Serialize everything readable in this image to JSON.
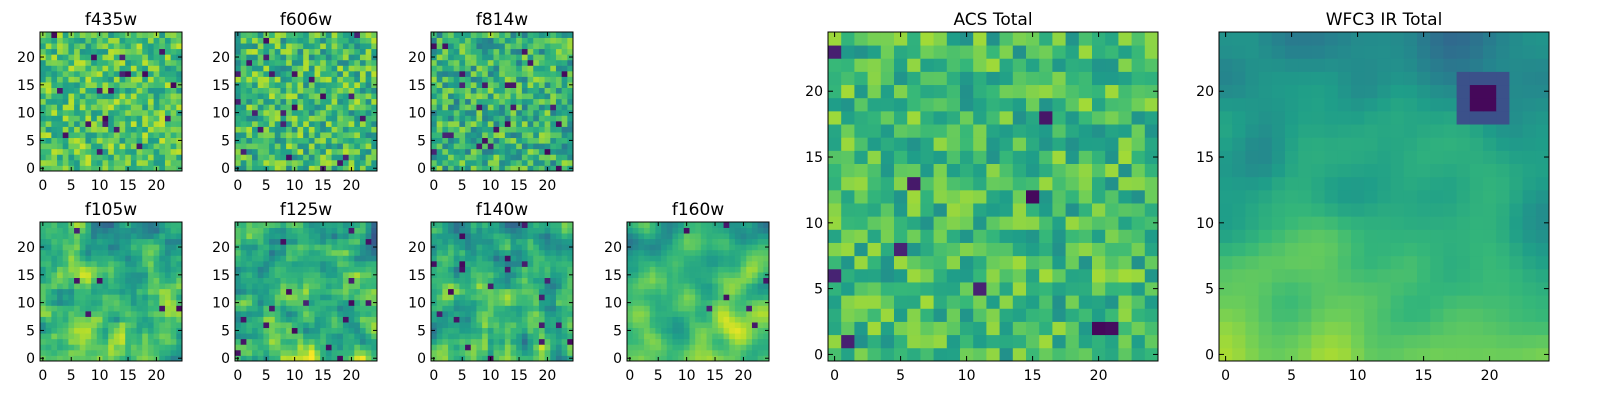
{
  "colormap": "viridis",
  "colors": {
    "viridis_stops": [
      "#440154",
      "#482878",
      "#3e4989",
      "#31688e",
      "#26828e",
      "#1f9e89",
      "#35b779",
      "#6ece58",
      "#b5de2b",
      "#fde725"
    ],
    "axis": "#000000",
    "background": "#ffffff"
  },
  "chart_data": [
    {
      "id": "f435w",
      "type": "heatmap",
      "title": "f435w",
      "nx": 25,
      "ny": 25,
      "xlim": [
        -0.5,
        24.5
      ],
      "ylim": [
        -0.5,
        24.5
      ],
      "xticks": [
        0,
        5,
        10,
        15,
        20
      ],
      "xtick_labels": [
        "0",
        "5",
        "10",
        "15",
        "20"
      ],
      "yticks": [
        0,
        5,
        10,
        15,
        20
      ],
      "ytick_labels": [
        "0",
        "5",
        "10",
        "15",
        "20"
      ],
      "value_range": [
        0,
        1
      ],
      "mean": 0.72,
      "noise": 0.2,
      "smooth": 0,
      "dark_spot_fraction": 0.025,
      "seed": 11
    },
    {
      "id": "f606w",
      "type": "heatmap",
      "title": "f606w",
      "nx": 25,
      "ny": 25,
      "xlim": [
        -0.5,
        24.5
      ],
      "ylim": [
        -0.5,
        24.5
      ],
      "xticks": [
        0,
        5,
        10,
        15,
        20
      ],
      "xtick_labels": [
        "0",
        "5",
        "10",
        "15",
        "20"
      ],
      "yticks": [
        0,
        5,
        10,
        15,
        20
      ],
      "ytick_labels": [
        "0",
        "5",
        "10",
        "15",
        "20"
      ],
      "value_range": [
        0,
        1
      ],
      "mean": 0.68,
      "noise": 0.22,
      "smooth": 0,
      "dark_spot_fraction": 0.035,
      "seed": 23
    },
    {
      "id": "f814w",
      "type": "heatmap",
      "title": "f814w",
      "nx": 25,
      "ny": 25,
      "xlim": [
        -0.5,
        24.5
      ],
      "ylim": [
        -0.5,
        24.5
      ],
      "xticks": [
        0,
        5,
        10,
        15,
        20
      ],
      "xtick_labels": [
        "0",
        "5",
        "10",
        "15",
        "20"
      ],
      "yticks": [
        0,
        5,
        10,
        15,
        20
      ],
      "ytick_labels": [
        "0",
        "5",
        "10",
        "15",
        "20"
      ],
      "value_range": [
        0,
        1
      ],
      "mean": 0.64,
      "noise": 0.22,
      "smooth": 0,
      "dark_spot_fraction": 0.03,
      "seed": 37
    },
    {
      "id": "f105w",
      "type": "heatmap",
      "title": "f105w",
      "nx": 25,
      "ny": 25,
      "xlim": [
        -0.5,
        24.5
      ],
      "ylim": [
        -0.5,
        24.5
      ],
      "xticks": [
        0,
        5,
        10,
        15,
        20
      ],
      "xtick_labels": [
        "0",
        "5",
        "10",
        "15",
        "20"
      ],
      "yticks": [
        0,
        5,
        10,
        15,
        20
      ],
      "ytick_labels": [
        "0",
        "5",
        "10",
        "15",
        "20"
      ],
      "value_range": [
        0,
        1
      ],
      "mean": 0.66,
      "noise": 0.24,
      "smooth": 1,
      "gradient": 0.16,
      "dark_spot_fraction": 0.02,
      "seed": 41
    },
    {
      "id": "f125w",
      "type": "heatmap",
      "title": "f125w",
      "nx": 25,
      "ny": 25,
      "xlim": [
        -0.5,
        24.5
      ],
      "ylim": [
        -0.5,
        24.5
      ],
      "xticks": [
        0,
        5,
        10,
        15,
        20
      ],
      "xtick_labels": [
        "0",
        "5",
        "10",
        "15",
        "20"
      ],
      "yticks": [
        0,
        5,
        10,
        15,
        20
      ],
      "ytick_labels": [
        "0",
        "5",
        "10",
        "15",
        "20"
      ],
      "value_range": [
        0,
        1
      ],
      "mean": 0.65,
      "noise": 0.25,
      "smooth": 1,
      "gradient": 0.12,
      "dark_spot_fraction": 0.02,
      "seed": 53
    },
    {
      "id": "f140w",
      "type": "heatmap",
      "title": "f140w",
      "nx": 25,
      "ny": 25,
      "xlim": [
        -0.5,
        24.5
      ],
      "ylim": [
        -0.5,
        24.5
      ],
      "xticks": [
        0,
        5,
        10,
        15,
        20
      ],
      "xtick_labels": [
        "0",
        "5",
        "10",
        "15",
        "20"
      ],
      "yticks": [
        0,
        5,
        10,
        15,
        20
      ],
      "ytick_labels": [
        "0",
        "5",
        "10",
        "15",
        "20"
      ],
      "value_range": [
        0,
        1
      ],
      "mean": 0.62,
      "noise": 0.25,
      "smooth": 1,
      "gradient": 0.12,
      "dark_spot_fraction": 0.025,
      "seed": 67
    },
    {
      "id": "f160w",
      "type": "heatmap",
      "title": "f160w",
      "nx": 25,
      "ny": 25,
      "xlim": [
        -0.5,
        24.5
      ],
      "ylim": [
        -0.5,
        24.5
      ],
      "xticks": [
        0,
        5,
        10,
        15,
        20
      ],
      "xtick_labels": [
        "0",
        "5",
        "10",
        "15",
        "20"
      ],
      "yticks": [
        0,
        5,
        10,
        15,
        20
      ],
      "ytick_labels": [
        "0",
        "5",
        "10",
        "15",
        "20"
      ],
      "value_range": [
        0,
        1
      ],
      "mean": 0.68,
      "noise": 0.2,
      "smooth": 2,
      "gradient": 0.2,
      "dark_spot_fraction": 0.01,
      "seed": 79
    },
    {
      "id": "acs-total",
      "type": "heatmap",
      "title": "ACS Total",
      "nx": 25,
      "ny": 25,
      "xlim": [
        -0.5,
        24.5
      ],
      "ylim": [
        -0.5,
        24.5
      ],
      "xticks": [
        0,
        5,
        10,
        15,
        20
      ],
      "xtick_labels": [
        "0",
        "5",
        "10",
        "15",
        "20"
      ],
      "yticks": [
        0,
        5,
        10,
        15,
        20
      ],
      "ytick_labels": [
        "0",
        "5",
        "10",
        "15",
        "20"
      ],
      "value_range": [
        0,
        1
      ],
      "mean": 0.68,
      "noise": 0.18,
      "smooth": 0,
      "dark_spot_fraction": 0.02,
      "seed": 97
    },
    {
      "id": "wfc3-ir-total",
      "type": "heatmap",
      "title": "WFC3 IR Total",
      "nx": 25,
      "ny": 25,
      "xlim": [
        -0.5,
        24.5
      ],
      "ylim": [
        -0.5,
        24.5
      ],
      "xticks": [
        0,
        5,
        10,
        15,
        20
      ],
      "xtick_labels": [
        "0",
        "5",
        "10",
        "15",
        "20"
      ],
      "yticks": [
        0,
        5,
        10,
        15,
        20
      ],
      "ytick_labels": [
        "0",
        "5",
        "10",
        "15",
        "20"
      ],
      "value_range": [
        0,
        1
      ],
      "mean": 0.62,
      "noise": 0.1,
      "smooth": 3,
      "gradient": 0.32,
      "dark_region": {
        "x_range": [
          18,
          21
        ],
        "y_range": [
          18,
          21
        ],
        "value": 0.02
      },
      "seed": 113
    }
  ]
}
